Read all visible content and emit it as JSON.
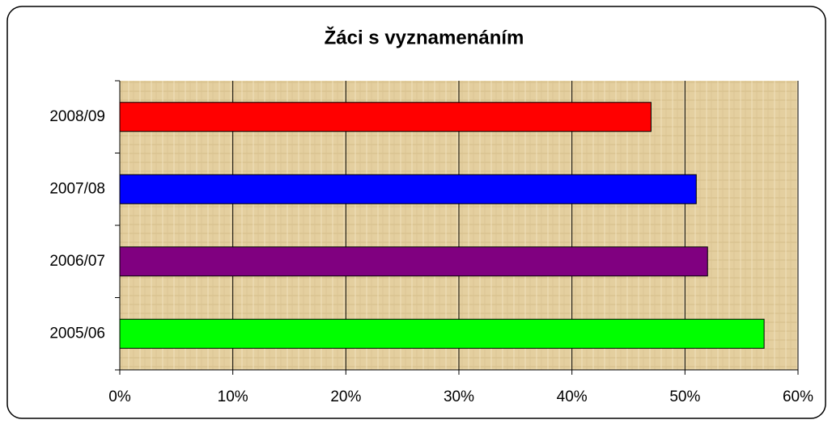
{
  "chart_data": {
    "type": "barh",
    "title": "Žáci s vyznamenáním",
    "categories": [
      "2008/09",
      "2007/08",
      "2006/07",
      "2005/06"
    ],
    "values": [
      47,
      51,
      52,
      57
    ],
    "colors": [
      "#ff0000",
      "#0000ff",
      "#800080",
      "#00ff00"
    ],
    "xlim": [
      0,
      60
    ],
    "xticks": [
      {
        "value": 0,
        "label": "0%"
      },
      {
        "value": 10,
        "label": "10%"
      },
      {
        "value": 20,
        "label": "20%"
      },
      {
        "value": 30,
        "label": "30%"
      },
      {
        "value": 40,
        "label": "40%"
      },
      {
        "value": 50,
        "label": "50%"
      },
      {
        "value": 60,
        "label": "60%"
      }
    ],
    "grid": true
  }
}
